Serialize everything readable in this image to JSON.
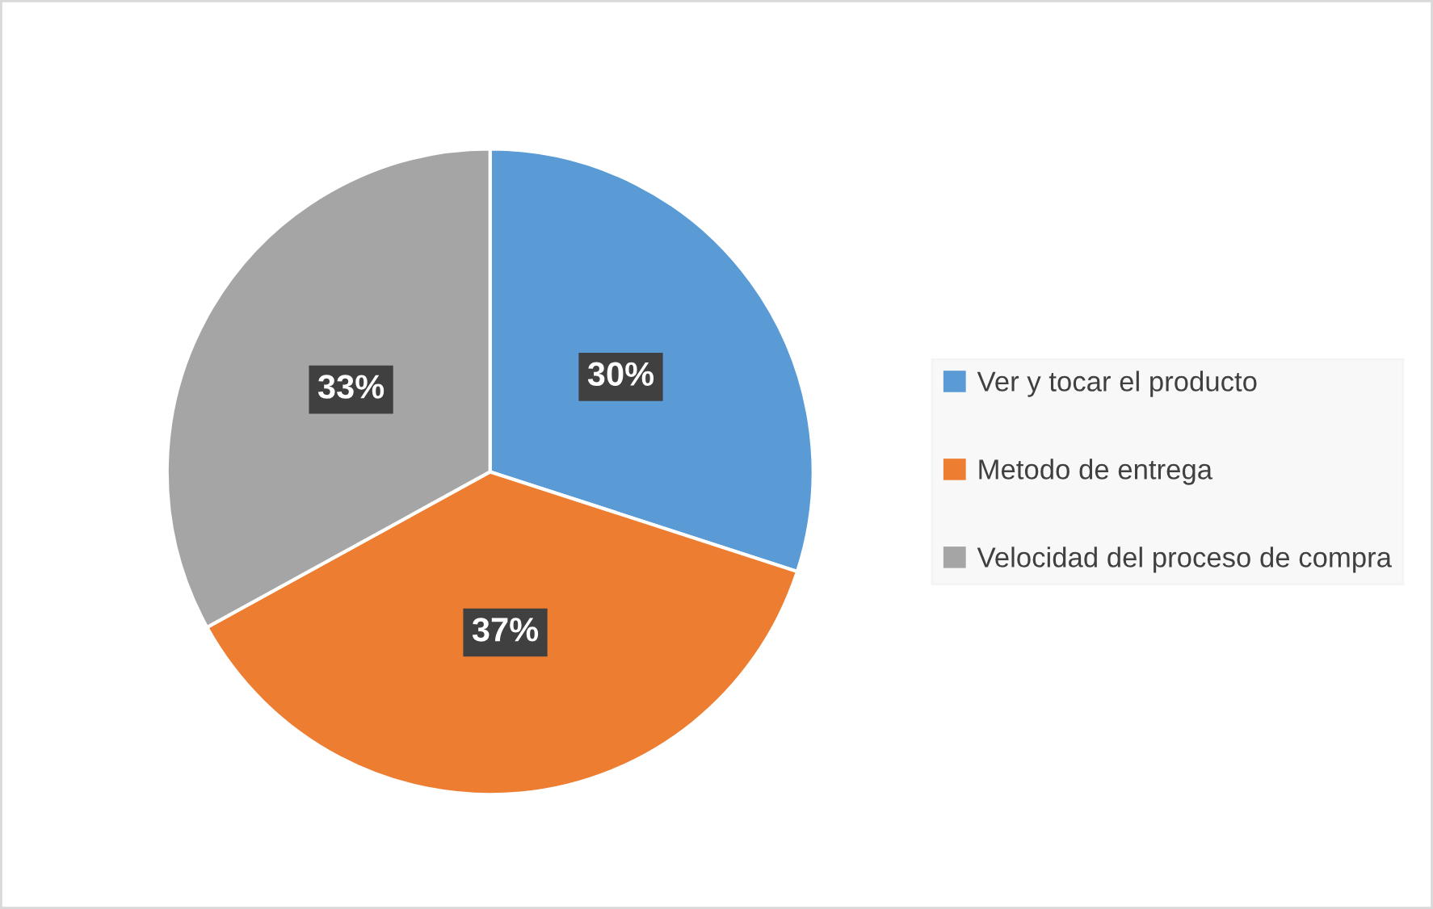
{
  "chart_data": {
    "type": "pie",
    "categories": [
      "Ver y tocar el producto",
      "Metodo de entrega",
      "Velocidad del proceso de compra"
    ],
    "values": [
      30,
      37,
      33
    ],
    "value_labels": [
      "30%",
      "37%",
      "33%"
    ],
    "colors": [
      "#5b9bd5",
      "#ed7d31",
      "#a5a5a5"
    ],
    "legend": "right"
  }
}
